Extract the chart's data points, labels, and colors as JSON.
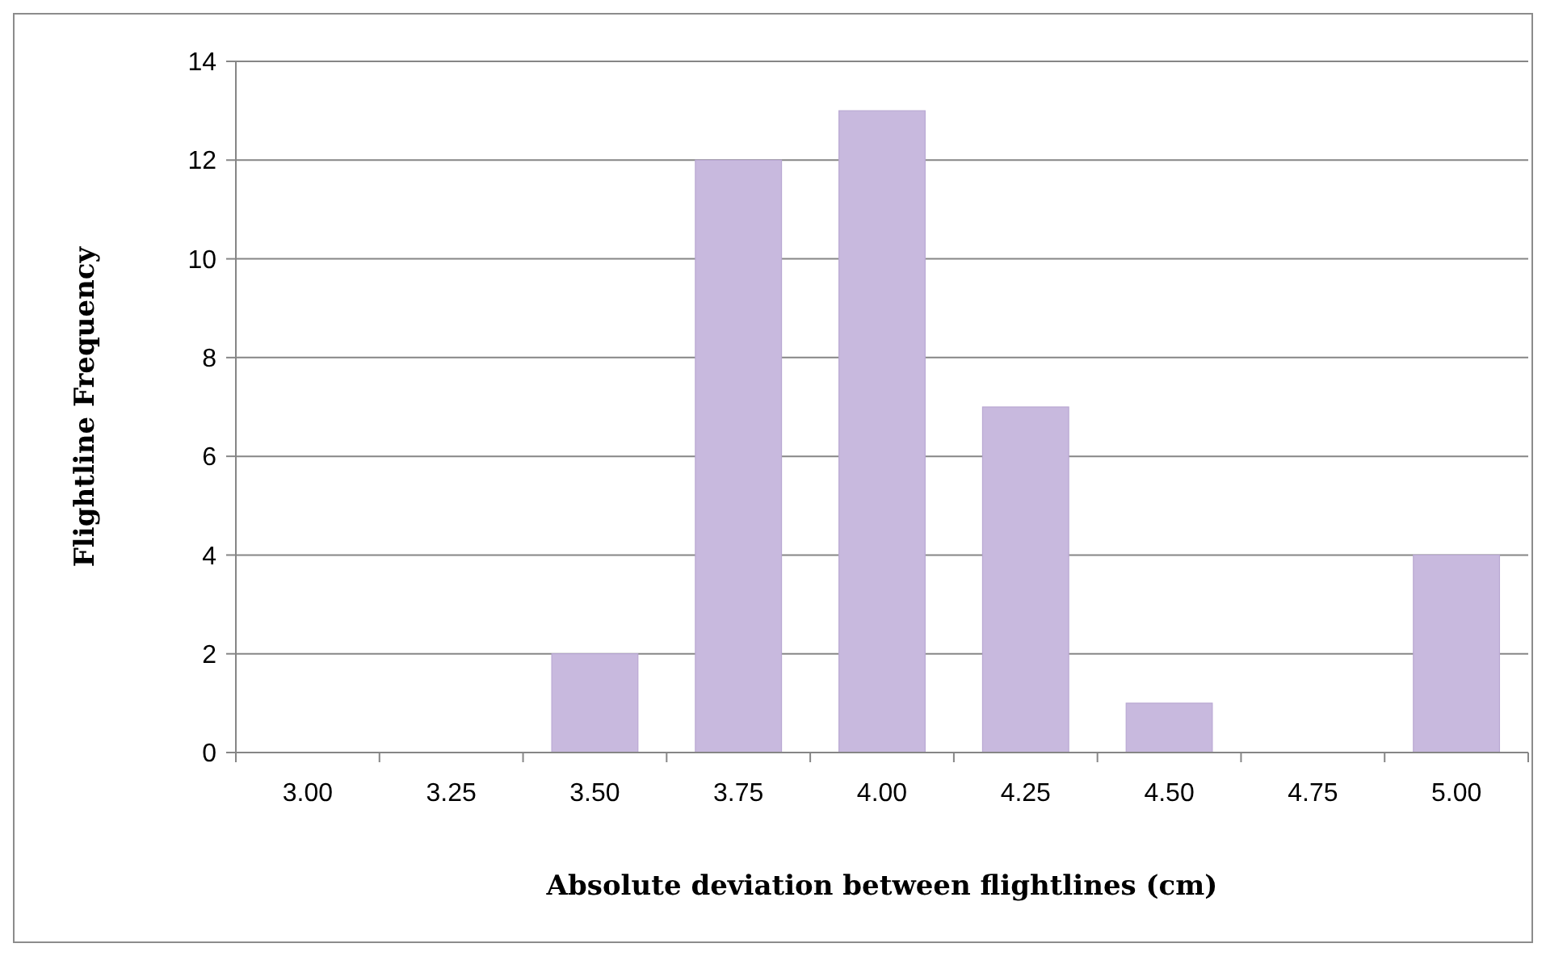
{
  "chart_data": {
    "type": "bar",
    "xlabel": "Absolute deviation between flightlines (cm)",
    "ylabel": "Flightline Frequency",
    "categories": [
      "3.00",
      "3.25",
      "3.50",
      "3.75",
      "4.00",
      "4.25",
      "4.50",
      "4.75",
      "5.00"
    ],
    "values": [
      0,
      0,
      2,
      12,
      13,
      7,
      1,
      0,
      4
    ],
    "color": "#c8b9de",
    "ylim": [
      0,
      14
    ],
    "yticks": [
      0,
      2,
      4,
      6,
      8,
      10,
      12,
      14
    ],
    "grid": "y"
  }
}
